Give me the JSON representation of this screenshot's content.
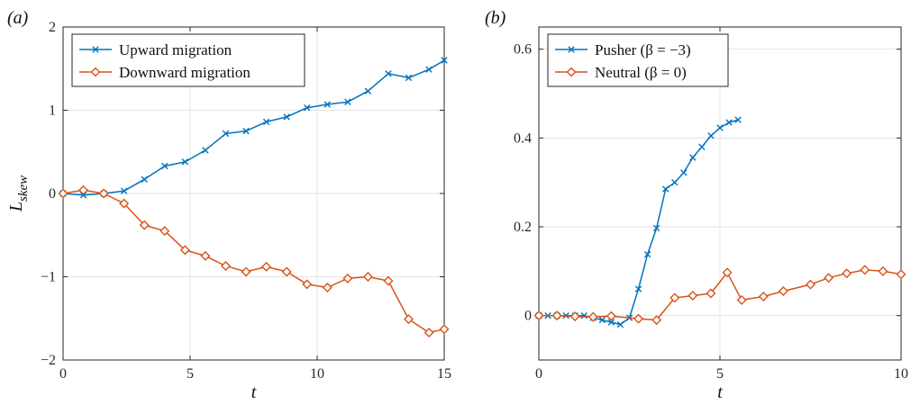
{
  "chart_data": [
    {
      "panel_label": "(a)",
      "type": "line",
      "xlabel": "t",
      "ylabel": "L",
      "ylabel_sub": "skew",
      "xlim": [
        0,
        15
      ],
      "ylim": [
        -2,
        2
      ],
      "xticks": [
        0,
        5,
        10,
        15
      ],
      "yticks": [
        -2,
        -1,
        0,
        1,
        2
      ],
      "ytick_labels": [
        "−2",
        "−1",
        "0",
        "1",
        "2"
      ],
      "grid": true,
      "legend_position": "top-left",
      "series": [
        {
          "name": "Upward migration",
          "color": "#0072BD",
          "marker": "x",
          "x": [
            0,
            0.8,
            1.6,
            2.4,
            3.2,
            4.0,
            4.8,
            5.6,
            6.4,
            7.2,
            8.0,
            8.8,
            9.6,
            10.4,
            11.2,
            12.0,
            12.8,
            13.6,
            14.4,
            15.0
          ],
          "y": [
            0.0,
            -0.02,
            0.0,
            0.03,
            0.17,
            0.33,
            0.38,
            0.52,
            0.72,
            0.75,
            0.86,
            0.92,
            1.03,
            1.07,
            1.1,
            1.23,
            1.44,
            1.39,
            1.49,
            1.6
          ]
        },
        {
          "name": "Downward migration",
          "color": "#D95319",
          "marker": "diamond",
          "x": [
            0,
            0.8,
            1.6,
            2.4,
            3.2,
            4.0,
            4.8,
            5.6,
            6.4,
            7.2,
            8.0,
            8.8,
            9.6,
            10.4,
            11.2,
            12.0,
            12.8,
            13.6,
            14.4,
            15.0
          ],
          "y": [
            0.0,
            0.04,
            0.0,
            -0.12,
            -0.38,
            -0.45,
            -0.68,
            -0.75,
            -0.87,
            -0.94,
            -0.88,
            -0.94,
            -1.09,
            -1.13,
            -1.02,
            -1.0,
            -1.05,
            -1.51,
            -1.67,
            -1.63
          ]
        }
      ]
    },
    {
      "panel_label": "(b)",
      "type": "line",
      "xlabel": "t",
      "ylabel": "",
      "xlim": [
        0,
        10
      ],
      "ylim": [
        -0.1,
        0.65
      ],
      "xticks": [
        0,
        5,
        10
      ],
      "yticks": [
        0,
        0.2,
        0.4,
        0.6
      ],
      "ytick_labels": [
        "0",
        "0.2",
        "0.4",
        "0.6"
      ],
      "grid": true,
      "legend_position": "top-left",
      "series": [
        {
          "name": "Pusher (β = −3)",
          "color": "#0072BD",
          "marker": "x",
          "x": [
            0,
            0.25,
            0.5,
            0.75,
            1.0,
            1.25,
            1.5,
            1.75,
            2.0,
            2.25,
            2.5,
            2.75,
            3.0,
            3.25,
            3.5,
            3.75,
            4.0,
            4.25,
            4.5,
            4.75,
            5.0,
            5.25,
            5.5
          ],
          "y": [
            0.0,
            0.0,
            0.0,
            0.0,
            0.0,
            0.0,
            -0.005,
            -0.01,
            -0.015,
            -0.02,
            -0.005,
            0.06,
            0.138,
            0.197,
            0.285,
            0.3,
            0.322,
            0.356,
            0.38,
            0.405,
            0.423,
            0.435,
            0.441
          ]
        },
        {
          "name": "Neutral (β = 0)",
          "color": "#D95319",
          "marker": "diamond",
          "x": [
            0,
            0.5,
            1.0,
            1.5,
            2.0,
            2.75,
            3.25,
            3.75,
            4.25,
            4.75,
            5.2,
            5.6,
            6.2,
            6.75,
            7.5,
            8.0,
            8.5,
            9.0,
            9.5,
            10.0
          ],
          "y": [
            0.0,
            0.0,
            -0.002,
            -0.003,
            -0.001,
            -0.007,
            -0.01,
            0.04,
            0.045,
            0.05,
            0.097,
            0.035,
            0.043,
            0.055,
            0.07,
            0.085,
            0.095,
            0.103,
            0.1,
            0.093
          ]
        }
      ]
    }
  ]
}
